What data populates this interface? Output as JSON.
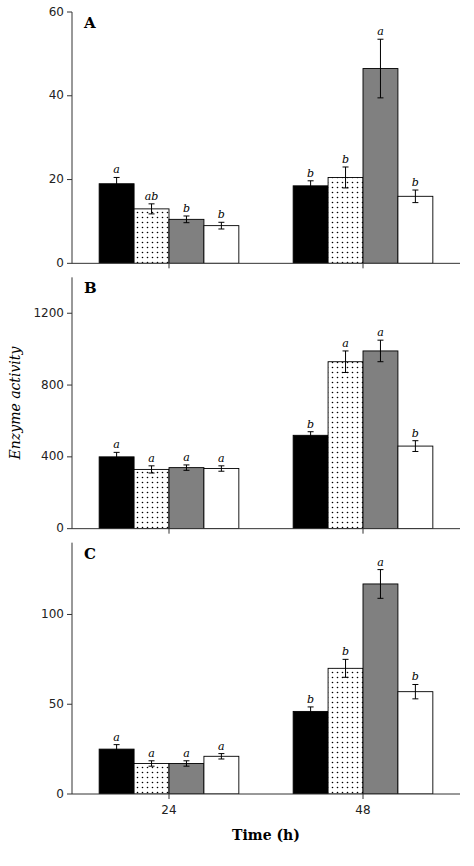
{
  "chart_data": [
    {
      "type": "bar",
      "title": "A",
      "categories": [
        null,
        null
      ],
      "ylim": [
        0,
        60
      ],
      "yticks": [
        0,
        20,
        40,
        60
      ],
      "series": [
        {
          "color": "#000000",
          "values": [
            19,
            18.5
          ],
          "errors": [
            1.5,
            1.2
          ],
          "annotations": [
            "a",
            "b"
          ]
        },
        {
          "color": "#ffffff",
          "values": [
            13,
            20.5
          ],
          "errors": [
            1.2,
            2.5
          ],
          "annotations": [
            "ab",
            "b"
          ]
        },
        {
          "color": "#808080",
          "values": [
            10.5,
            46.5
          ],
          "errors": [
            0.8,
            7
          ],
          "annotations": [
            "b",
            "a"
          ]
        },
        {
          "color": "#ffffff",
          "values": [
            9,
            16
          ],
          "errors": [
            0.8,
            1.5
          ],
          "annotations": [
            "b",
            "b"
          ]
        }
      ]
    },
    {
      "type": "bar",
      "title": "B",
      "ylabel": "Enzyme activity",
      "categories": [
        null,
        null
      ],
      "ylim": [
        0,
        1400
      ],
      "yticks": [
        0,
        400,
        800,
        1200
      ],
      "series": [
        {
          "color": "#000000",
          "values": [
            400,
            520
          ],
          "errors": [
            25,
            20
          ],
          "annotations": [
            "a",
            "b"
          ]
        },
        {
          "color": "#ffffff",
          "values": [
            330,
            930
          ],
          "errors": [
            20,
            60
          ],
          "annotations": [
            "a",
            "a"
          ]
        },
        {
          "color": "#808080",
          "values": [
            340,
            990
          ],
          "errors": [
            15,
            60
          ],
          "annotations": [
            "a",
            "a"
          ]
        },
        {
          "color": "#ffffff",
          "values": [
            335,
            460
          ],
          "errors": [
            15,
            30
          ],
          "annotations": [
            "a",
            "b"
          ]
        }
      ]
    },
    {
      "type": "bar",
      "title": "C",
      "xlabel": "Time (h)",
      "categories": [
        "24",
        "48"
      ],
      "ylim": [
        0,
        140
      ],
      "yticks": [
        0,
        50,
        100
      ],
      "series": [
        {
          "color": "#000000",
          "values": [
            25,
            46
          ],
          "errors": [
            2.5,
            2.5
          ],
          "annotations": [
            "a",
            "b"
          ]
        },
        {
          "color": "#ffffff",
          "values": [
            17,
            70
          ],
          "errors": [
            1.5,
            5
          ],
          "annotations": [
            "a",
            "b"
          ]
        },
        {
          "color": "#808080",
          "values": [
            17,
            117
          ],
          "errors": [
            1.5,
            8
          ],
          "annotations": [
            "a",
            "a"
          ]
        },
        {
          "color": "#ffffff",
          "values": [
            21,
            57
          ],
          "errors": [
            1.5,
            4
          ],
          "annotations": [
            "a",
            "b"
          ]
        }
      ]
    }
  ]
}
